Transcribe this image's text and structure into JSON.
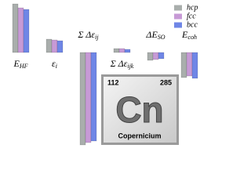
{
  "chart_data": {
    "type": "bar",
    "categories": [
      "E",
      "ε",
      "Σ Δε",
      "Σ Δε",
      "ΔE",
      "E"
    ],
    "category_subscripts": [
      "HF",
      "i",
      "ij",
      "ijk",
      "SO",
      "coh"
    ],
    "series": [
      {
        "name": "hcp",
        "color": "#a9aeac",
        "values": [
          62,
          17,
          -118,
          5,
          -10,
          -32
        ]
      },
      {
        "name": "fcc",
        "color": "#c79ad6",
        "values": [
          57,
          16,
          -115,
          5,
          -9,
          -30
        ]
      },
      {
        "name": "bcc",
        "color": "#6f86e6",
        "values": [
          55,
          15,
          -113,
          4,
          -8,
          -33
        ]
      }
    ],
    "ylim": [
      -120,
      67
    ],
    "legend": "upper right"
  },
  "element": {
    "number": "112",
    "mass": "285",
    "symbol": "Cn",
    "name": "Copernicium"
  }
}
